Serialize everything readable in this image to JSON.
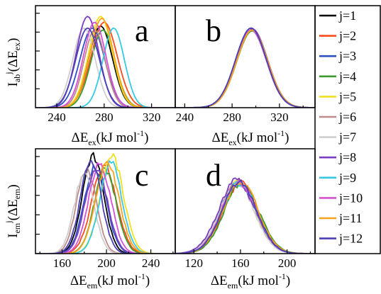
{
  "chart_data": {
    "type": "line",
    "legend": {
      "placement": "right",
      "entries": [
        {
          "label": "j=1",
          "color": "#000000"
        },
        {
          "label": "j=2",
          "color": "#ff4a1c"
        },
        {
          "label": "j=3",
          "color": "#2f4fc4"
        },
        {
          "label": "j=4",
          "color": "#3c9a2c"
        },
        {
          "label": "j=5",
          "color": "#f0e020"
        },
        {
          "label": "j=6",
          "color": "#c08a8a"
        },
        {
          "label": "j=7",
          "color": "#cfcfcf"
        },
        {
          "label": "j=8",
          "color": "#7a3fc0"
        },
        {
          "label": "j=9",
          "color": "#35c9e6"
        },
        {
          "label": "j=10",
          "color": "#d651d6"
        },
        {
          "label": "j=11",
          "color": "#f7a41c"
        },
        {
          "label": "j=12",
          "color": "#4a3fb5"
        }
      ]
    },
    "panels": [
      {
        "id": "a",
        "label": "a",
        "xlabel": {
          "base": "ΔE",
          "sub": "ex",
          "rest": "(kJ mol",
          "sup": "-1",
          "end": ")"
        },
        "ylabel": {
          "base": "I",
          "sub": "ab",
          "sup": "j",
          "rest": "(ΔE",
          "sub2": "ex",
          "end": ")"
        },
        "xlim": [
          222,
          340
        ],
        "ylim": [
          0,
          1.05
        ],
        "xticks": [
          240,
          280,
          320
        ],
        "xticklabels": [
          "240",
          "280",
          "320"
        ],
        "series": [
          {
            "color": "#000000",
            "center": 277,
            "width": 10.0,
            "height": 0.84
          },
          {
            "color": "#ff4a1c",
            "center": 280,
            "width": 11.0,
            "height": 0.88
          },
          {
            "color": "#2f4fc4",
            "center": 270,
            "width": 10.5,
            "height": 0.82
          },
          {
            "color": "#3c9a2c",
            "center": 279,
            "width": 10.0,
            "height": 0.8
          },
          {
            "color": "#f0e020",
            "center": 277,
            "width": 10.0,
            "height": 0.94
          },
          {
            "color": "#c08a8a",
            "center": 272,
            "width": 9.0,
            "height": 0.8
          },
          {
            "color": "#cfcfcf",
            "center": 263,
            "width": 9.5,
            "height": 0.82
          },
          {
            "color": "#7a3fc0",
            "center": 266,
            "width": 9.5,
            "height": 0.94
          },
          {
            "color": "#35c9e6",
            "center": 288,
            "width": 9.0,
            "height": 0.82
          },
          {
            "color": "#d651d6",
            "center": 272,
            "width": 9.5,
            "height": 0.88
          },
          {
            "color": "#f7a41c",
            "center": 278,
            "width": 10.0,
            "height": 0.92
          },
          {
            "color": "#4a3fb5",
            "center": 266,
            "width": 10.0,
            "height": 0.82
          }
        ]
      },
      {
        "id": "b",
        "label": "b",
        "xlabel": {
          "base": "ΔE",
          "sub": "ex",
          "rest": "(kJ mol",
          "sup": "-1",
          "end": ")"
        },
        "xlim": [
          232,
          350
        ],
        "ylim": [
          0,
          1.05
        ],
        "xticks": [
          240,
          280,
          320
        ],
        "xticklabels": [
          "240",
          "280",
          "320"
        ],
        "series": [
          {
            "color": "#000000",
            "center": 296,
            "width": 13.0,
            "height": 0.8
          },
          {
            "color": "#ff4a1c",
            "center": 297,
            "width": 13.0,
            "height": 0.81
          },
          {
            "color": "#2f4fc4",
            "center": 296,
            "width": 13.0,
            "height": 0.8
          },
          {
            "color": "#3c9a2c",
            "center": 297,
            "width": 13.0,
            "height": 0.79
          },
          {
            "color": "#f0e020",
            "center": 296,
            "width": 13.0,
            "height": 0.8
          },
          {
            "color": "#c08a8a",
            "center": 296,
            "width": 13.0,
            "height": 0.8
          },
          {
            "color": "#cfcfcf",
            "center": 296,
            "width": 13.0,
            "height": 0.8
          },
          {
            "color": "#7a3fc0",
            "center": 297,
            "width": 13.0,
            "height": 0.81
          },
          {
            "color": "#35c9e6",
            "center": 296,
            "width": 13.0,
            "height": 0.8
          },
          {
            "color": "#d651d6",
            "center": 296,
            "width": 13.0,
            "height": 0.8
          },
          {
            "color": "#f7a41c",
            "center": 297,
            "width": 13.0,
            "height": 0.8
          },
          {
            "color": "#4a3fb5",
            "center": 296,
            "width": 13.0,
            "height": 0.82
          }
        ]
      },
      {
        "id": "c",
        "label": "c",
        "xlabel": {
          "base": "ΔE",
          "sub": "em",
          "rest": "(kJ mol",
          "sup": "-1",
          "end": ")"
        },
        "ylabel": {
          "base": "I",
          "sub": "em",
          "sup": "j",
          "rest": "(ΔE",
          "sub2": "em",
          "end": ")"
        },
        "xlim": [
          136,
          262
        ],
        "ylim": [
          0,
          1.05
        ],
        "xticks": [
          160,
          200,
          240
        ],
        "xticklabels": [
          "160",
          "200",
          "240"
        ],
        "series": [
          {
            "color": "#000000",
            "center": 188,
            "width": 9.5,
            "height": 0.98
          },
          {
            "color": "#ff4a1c",
            "center": 198,
            "width": 11.0,
            "height": 0.88
          },
          {
            "color": "#2f4fc4",
            "center": 190,
            "width": 10.0,
            "height": 0.86
          },
          {
            "color": "#3c9a2c",
            "center": 199,
            "width": 10.0,
            "height": 0.84
          },
          {
            "color": "#f0e020",
            "center": 205,
            "width": 10.5,
            "height": 0.96
          },
          {
            "color": "#c08a8a",
            "center": 182,
            "width": 9.0,
            "height": 0.84
          },
          {
            "color": "#cfcfcf",
            "center": 180,
            "width": 9.0,
            "height": 0.8
          },
          {
            "color": "#7a3fc0",
            "center": 191,
            "width": 10.0,
            "height": 0.86
          },
          {
            "color": "#35c9e6",
            "center": 204,
            "width": 10.0,
            "height": 0.9
          },
          {
            "color": "#d651d6",
            "center": 194,
            "width": 10.0,
            "height": 0.9
          },
          {
            "color": "#f7a41c",
            "center": 201,
            "width": 10.5,
            "height": 0.9
          },
          {
            "color": "#4a3fb5",
            "center": 186,
            "width": 9.5,
            "height": 0.92
          }
        ]
      },
      {
        "id": "d",
        "label": "d",
        "xlabel": {
          "base": "ΔE",
          "sub": "em",
          "rest": "(kJ mol",
          "sup": "-1",
          "end": ")"
        },
        "xlim": [
          104,
          224
        ],
        "ylim": [
          0,
          1.05
        ],
        "xticks": [
          120,
          160,
          200
        ],
        "xticklabels": [
          "120",
          "160",
          "200"
        ],
        "series": [
          {
            "color": "#000000",
            "center": 158,
            "width": 15.0,
            "height": 0.72
          },
          {
            "color": "#ff4a1c",
            "center": 160,
            "width": 15.0,
            "height": 0.71
          },
          {
            "color": "#2f4fc4",
            "center": 158,
            "width": 15.0,
            "height": 0.72
          },
          {
            "color": "#3c9a2c",
            "center": 161,
            "width": 15.0,
            "height": 0.7
          },
          {
            "color": "#f0e020",
            "center": 158,
            "width": 15.0,
            "height": 0.71
          },
          {
            "color": "#c08a8a",
            "center": 158,
            "width": 15.0,
            "height": 0.71
          },
          {
            "color": "#cfcfcf",
            "center": 157,
            "width": 15.0,
            "height": 0.7
          },
          {
            "color": "#7a3fc0",
            "center": 157,
            "width": 15.5,
            "height": 0.73
          },
          {
            "color": "#35c9e6",
            "center": 159,
            "width": 15.0,
            "height": 0.71
          },
          {
            "color": "#d651d6",
            "center": 159,
            "width": 15.0,
            "height": 0.71
          },
          {
            "color": "#f7a41c",
            "center": 160,
            "width": 15.0,
            "height": 0.72
          },
          {
            "color": "#4a3fb5",
            "center": 159,
            "width": 15.0,
            "height": 0.71
          }
        ]
      }
    ]
  }
}
